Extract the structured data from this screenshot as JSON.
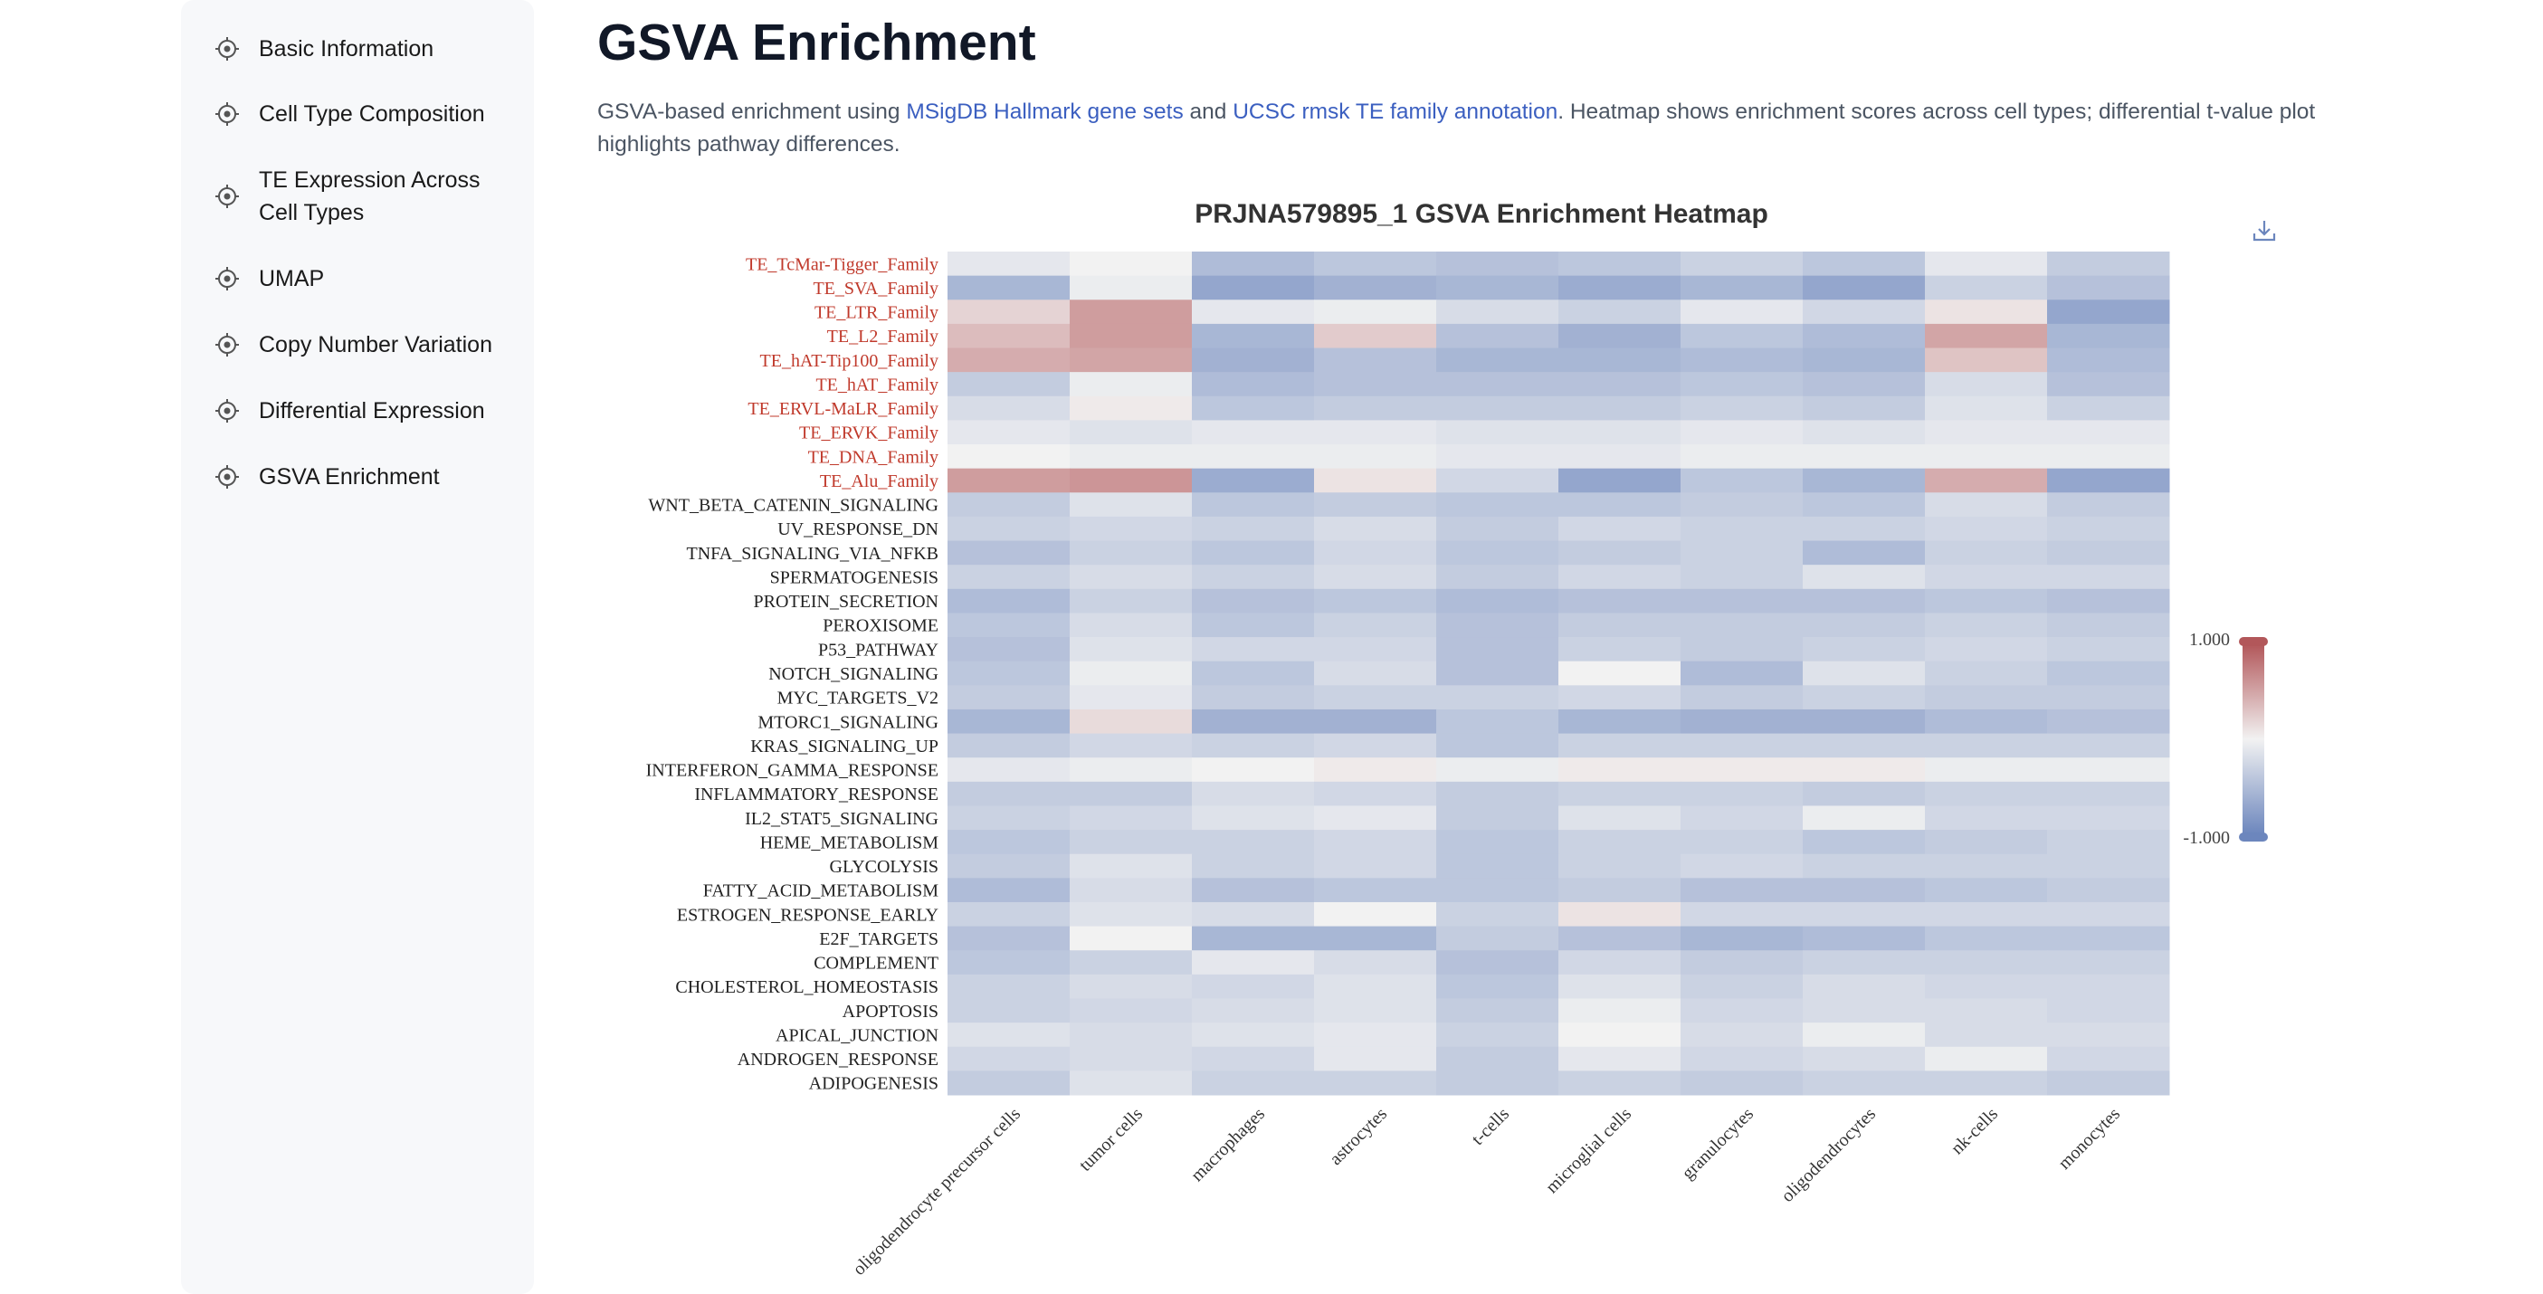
{
  "sidebar": {
    "items": [
      {
        "label": "Basic Information"
      },
      {
        "label": "Cell Type Composition"
      },
      {
        "label": "TE Expression Across",
        "label2": "Cell Types"
      },
      {
        "label": "UMAP"
      },
      {
        "label": "Copy Number Variation"
      },
      {
        "label": "Differential Expression"
      },
      {
        "label": "GSVA Enrichment"
      }
    ]
  },
  "main": {
    "title": "GSVA Enrichment",
    "desc_p1": "GSVA-based enrichment using ",
    "desc_link1": "MSigDB Hallmark gene sets",
    "desc_p2": " and ",
    "desc_link2": "UCSC rmsk TE family annotation",
    "desc_p3": ". Heatmap shows enrichment scores across cell types; differential t-value plot highlights pathway differences."
  },
  "colors": {
    "te_label": "#c0392b",
    "pathway_label": "#222222",
    "high": "#b2575a",
    "mid": "#f2f2f2",
    "low": "#6c86bd",
    "link": "#3b5fc0"
  },
  "chart_data": {
    "type": "heatmap",
    "title": "PRJNA579895_1 GSVA Enrichment Heatmap",
    "x_categories": [
      "oligodendrocyte precursor cells",
      "tumor cells",
      "macrophages",
      "astrocytes",
      "t-cells",
      "microglial cells",
      "granulocytes",
      "oligodendrocytes",
      "nk-cells",
      "monocytes"
    ],
    "y_labels": [
      "TE_TcMar-Tigger_Family",
      "TE_SVA_Family",
      "TE_LTR_Family",
      "TE_L2_Family",
      "TE_hAT-Tip100_Family",
      "TE_hAT_Family",
      "TE_ERVL-MaLR_Family",
      "TE_ERVK_Family",
      "TE_DNA_Family",
      "TE_Alu_Family",
      "WNT_BETA_CATENIN_SIGNALING",
      "UV_RESPONSE_DN",
      "TNFA_SIGNALING_VIA_NFKB",
      "SPERMATOGENESIS",
      "PROTEIN_SECRETION",
      "PEROXISOME",
      "P53_PATHWAY",
      "NOTCH_SIGNALING",
      "MYC_TARGETS_V2",
      "MTORC1_SIGNALING",
      "KRAS_SIGNALING_UP",
      "INTERFERON_GAMMA_RESPONSE",
      "INFLAMMATORY_RESPONSE",
      "IL2_STAT5_SIGNALING",
      "HEME_METABOLISM",
      "GLYCOLYSIS",
      "FATTY_ACID_METABOLISM",
      "ESTROGEN_RESPONSE_EARLY",
      "E2F_TARGETS",
      "COMPLEMENT",
      "CHOLESTEROL_HOMEOSTASIS",
      "APOPTOSIS",
      "APICAL_JUNCTION",
      "ANDROGEN_RESPONSE",
      "ADIPOGENESIS"
    ],
    "te_label_count": 10,
    "colorbar": {
      "max_label": "1.000",
      "min_label": "-1.000",
      "range": [
        -1,
        1
      ]
    },
    "values": [
      [
        -0.1,
        0.0,
        -0.5,
        -0.4,
        -0.45,
        -0.4,
        -0.3,
        -0.4,
        -0.1,
        -0.35
      ],
      [
        -0.55,
        -0.05,
        -0.7,
        -0.6,
        -0.55,
        -0.65,
        -0.55,
        -0.7,
        -0.3,
        -0.45
      ],
      [
        0.2,
        0.55,
        -0.1,
        -0.05,
        -0.2,
        -0.3,
        -0.1,
        -0.25,
        0.1,
        -0.7
      ],
      [
        0.35,
        0.55,
        -0.55,
        0.25,
        -0.45,
        -0.6,
        -0.4,
        -0.5,
        0.5,
        -0.55
      ],
      [
        0.45,
        0.5,
        -0.6,
        -0.45,
        -0.55,
        -0.55,
        -0.5,
        -0.55,
        0.3,
        -0.5
      ],
      [
        -0.35,
        -0.05,
        -0.5,
        -0.45,
        -0.45,
        -0.45,
        -0.4,
        -0.45,
        -0.2,
        -0.45
      ],
      [
        -0.2,
        0.05,
        -0.4,
        -0.35,
        -0.35,
        -0.35,
        -0.3,
        -0.35,
        -0.15,
        -0.3
      ],
      [
        -0.1,
        -0.15,
        -0.1,
        -0.1,
        -0.15,
        -0.15,
        -0.1,
        -0.15,
        -0.1,
        -0.1
      ],
      [
        0.0,
        -0.05,
        -0.05,
        -0.05,
        -0.1,
        -0.1,
        -0.05,
        -0.05,
        -0.05,
        -0.05
      ],
      [
        0.55,
        0.6,
        -0.65,
        0.1,
        -0.25,
        -0.7,
        -0.4,
        -0.55,
        0.45,
        -0.7
      ],
      [
        -0.35,
        -0.15,
        -0.4,
        -0.35,
        -0.4,
        -0.4,
        -0.35,
        -0.4,
        -0.2,
        -0.35
      ],
      [
        -0.3,
        -0.25,
        -0.3,
        -0.2,
        -0.35,
        -0.25,
        -0.3,
        -0.3,
        -0.25,
        -0.3
      ],
      [
        -0.45,
        -0.3,
        -0.4,
        -0.25,
        -0.4,
        -0.35,
        -0.3,
        -0.5,
        -0.3,
        -0.35
      ],
      [
        -0.3,
        -0.2,
        -0.3,
        -0.2,
        -0.35,
        -0.25,
        -0.3,
        -0.15,
        -0.25,
        -0.25
      ],
      [
        -0.5,
        -0.3,
        -0.45,
        -0.4,
        -0.5,
        -0.45,
        -0.45,
        -0.45,
        -0.4,
        -0.45
      ],
      [
        -0.4,
        -0.2,
        -0.4,
        -0.3,
        -0.45,
        -0.35,
        -0.35,
        -0.35,
        -0.3,
        -0.35
      ],
      [
        -0.45,
        -0.15,
        -0.25,
        -0.25,
        -0.45,
        -0.3,
        -0.35,
        -0.3,
        -0.25,
        -0.3
      ],
      [
        -0.4,
        -0.05,
        -0.4,
        -0.2,
        -0.45,
        0.0,
        -0.5,
        -0.15,
        -0.3,
        -0.4
      ],
      [
        -0.35,
        -0.1,
        -0.35,
        -0.3,
        -0.3,
        -0.25,
        -0.35,
        -0.3,
        -0.35,
        -0.35
      ],
      [
        -0.55,
        0.15,
        -0.6,
        -0.6,
        -0.4,
        -0.55,
        -0.6,
        -0.6,
        -0.5,
        -0.45
      ],
      [
        -0.35,
        -0.25,
        -0.3,
        -0.25,
        -0.4,
        -0.3,
        -0.3,
        -0.3,
        -0.3,
        -0.3
      ],
      [
        -0.1,
        -0.05,
        0.0,
        0.05,
        -0.05,
        0.05,
        0.05,
        0.05,
        -0.05,
        -0.05
      ],
      [
        -0.35,
        -0.35,
        -0.2,
        -0.25,
        -0.35,
        -0.3,
        -0.3,
        -0.35,
        -0.3,
        -0.3
      ],
      [
        -0.3,
        -0.25,
        -0.15,
        -0.1,
        -0.35,
        -0.15,
        -0.25,
        -0.05,
        -0.25,
        -0.25
      ],
      [
        -0.4,
        -0.3,
        -0.3,
        -0.25,
        -0.4,
        -0.3,
        -0.3,
        -0.4,
        -0.35,
        -0.3
      ],
      [
        -0.35,
        -0.15,
        -0.3,
        -0.25,
        -0.4,
        -0.3,
        -0.25,
        -0.3,
        -0.3,
        -0.3
      ],
      [
        -0.5,
        -0.2,
        -0.45,
        -0.4,
        -0.4,
        -0.35,
        -0.45,
        -0.45,
        -0.4,
        -0.35
      ],
      [
        -0.3,
        -0.15,
        -0.2,
        0.0,
        -0.3,
        0.1,
        -0.25,
        -0.25,
        -0.25,
        -0.25
      ],
      [
        -0.45,
        0.0,
        -0.55,
        -0.55,
        -0.35,
        -0.45,
        -0.55,
        -0.5,
        -0.4,
        -0.4
      ],
      [
        -0.4,
        -0.3,
        -0.1,
        -0.2,
        -0.45,
        -0.25,
        -0.35,
        -0.3,
        -0.3,
        -0.3
      ],
      [
        -0.3,
        -0.2,
        -0.25,
        -0.15,
        -0.4,
        -0.15,
        -0.3,
        -0.2,
        -0.25,
        -0.25
      ],
      [
        -0.3,
        -0.25,
        -0.2,
        -0.15,
        -0.35,
        -0.05,
        -0.25,
        -0.2,
        -0.2,
        -0.25
      ],
      [
        -0.15,
        -0.2,
        -0.15,
        -0.1,
        -0.3,
        0.0,
        -0.2,
        -0.05,
        -0.2,
        -0.2
      ],
      [
        -0.25,
        -0.2,
        -0.25,
        -0.1,
        -0.35,
        -0.1,
        -0.25,
        -0.2,
        -0.05,
        -0.25
      ],
      [
        -0.35,
        -0.15,
        -0.3,
        -0.3,
        -0.35,
        -0.3,
        -0.35,
        -0.3,
        -0.3,
        -0.35
      ]
    ]
  }
}
